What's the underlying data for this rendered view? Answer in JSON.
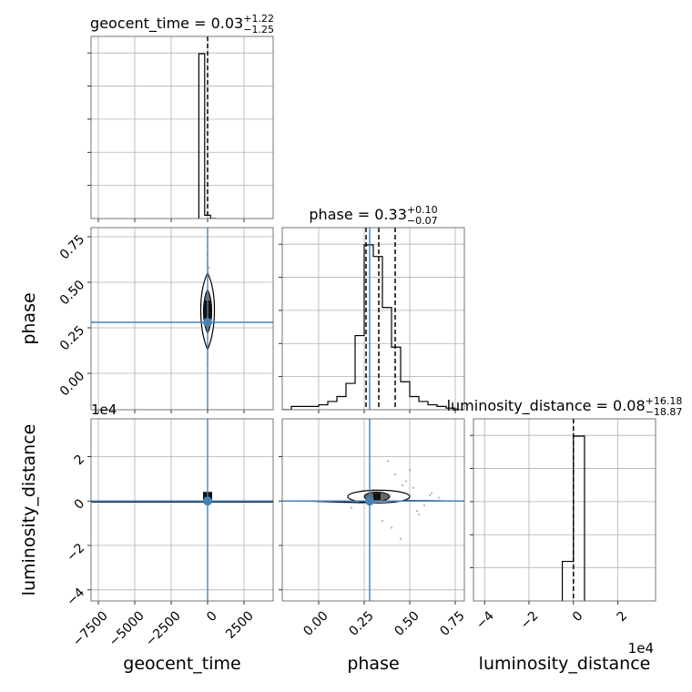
{
  "chart_data": {
    "type": "corner",
    "parameters": [
      "geocent_time",
      "phase",
      "luminosity_distance"
    ],
    "titles": [
      {
        "name": "geocent_time",
        "median": "0.03",
        "plus": "+1.22",
        "minus": "−1.25"
      },
      {
        "name": "phase",
        "median": "0.33",
        "plus": "+0.10",
        "minus": "−0.07"
      },
      {
        "name": "luminosity_distance",
        "median": "0.08",
        "plus": "+16.18",
        "minus": "−18.87"
      }
    ],
    "truths": [
      0.0,
      0.28,
      0.0
    ],
    "truth_color": "#4682b4",
    "line_color": "#000000",
    "grid": true,
    "ranges": {
      "geocent_time": [
        -8000,
        4500
      ],
      "phase": [
        -0.2,
        0.8
      ],
      "luminosity_distance": [
        -45000,
        37000
      ]
    },
    "ticks": {
      "geocent_time": {
        "values": [
          -7500,
          -5000,
          -2500,
          0,
          2500
        ],
        "labels": [
          "−7500",
          "−5000",
          "−2500",
          "0",
          "2500"
        ]
      },
      "phase_x": {
        "values": [
          0.0,
          0.25,
          0.5,
          0.75
        ],
        "labels": [
          "0.00",
          "0.25",
          "0.50",
          "0.75"
        ]
      },
      "phase_y": {
        "values": [
          0.0,
          0.25,
          0.5,
          0.75
        ],
        "labels": [
          "0.00",
          "0.25",
          "0.50",
          "0.75"
        ]
      },
      "luminosity_distance": {
        "values": [
          -40000,
          -20000,
          0,
          20000
        ],
        "labels": [
          "−4",
          "−2",
          "0",
          "2"
        ]
      }
    },
    "offset_label": "1e4",
    "quantile_lines": {
      "phase": [
        0.26,
        0.33,
        0.42
      ],
      "geocent_time": [
        0.0
      ],
      "luminosity_distance": [
        0.0
      ]
    },
    "hist_geocent_time": {
      "edges": [
        -600,
        -200,
        200,
        600
      ],
      "counts": [
        1.0,
        0.02,
        0.0
      ]
    },
    "hist_phase": {
      "edges": [
        -0.2,
        -0.15,
        -0.1,
        -0.05,
        0.0,
        0.05,
        0.1,
        0.15,
        0.2,
        0.25,
        0.3,
        0.35,
        0.4,
        0.45,
        0.5,
        0.55,
        0.6,
        0.65,
        0.7,
        0.75,
        0.8
      ],
      "counts": [
        0.0,
        0.02,
        0.02,
        0.02,
        0.03,
        0.05,
        0.08,
        0.16,
        0.45,
        1.0,
        0.93,
        0.62,
        0.38,
        0.17,
        0.08,
        0.05,
        0.03,
        0.02,
        0.01,
        0.0
      ]
    },
    "hist_luminosity_distance": {
      "edges": [
        -5000,
        0,
        5000
      ],
      "counts": [
        0.24,
        1.0
      ]
    },
    "scatter_geocent_phase": {
      "x": [
        30,
        -40,
        60,
        -20,
        120,
        -90,
        10,
        200,
        -150,
        40,
        80,
        -60,
        0,
        300,
        -250,
        20,
        150,
        -100,
        50,
        -30,
        90,
        -200,
        250,
        5,
        -10
      ],
      "y": [
        0.55,
        0.2,
        0.45,
        0.6,
        0.38,
        0.27,
        0.15,
        0.32,
        0.41,
        0.5,
        0.22,
        0.36,
        0.65,
        0.3,
        0.28,
        0.1,
        0.48,
        0.44,
        0.25,
        0.35,
        0.58,
        0.33,
        0.4,
        0.05,
        0.7
      ]
    },
    "scatter_phase_dist": {
      "x": [
        0.52,
        0.18,
        0.61,
        0.45,
        0.38,
        0.26,
        0.55,
        0.48,
        0.66,
        0.22,
        0.35,
        0.42,
        0.58,
        0.3,
        0.5,
        0.4,
        0.62,
        0.28,
        0.46,
        0.54
      ],
      "y": [
        6000,
        -3000,
        2500,
        -17000,
        18000,
        4000,
        -6000,
        9000,
        1500,
        3000,
        -9000,
        12000,
        -2000,
        5000,
        14000,
        -12000,
        3500,
        -1500,
        7000,
        -4500
      ]
    }
  }
}
